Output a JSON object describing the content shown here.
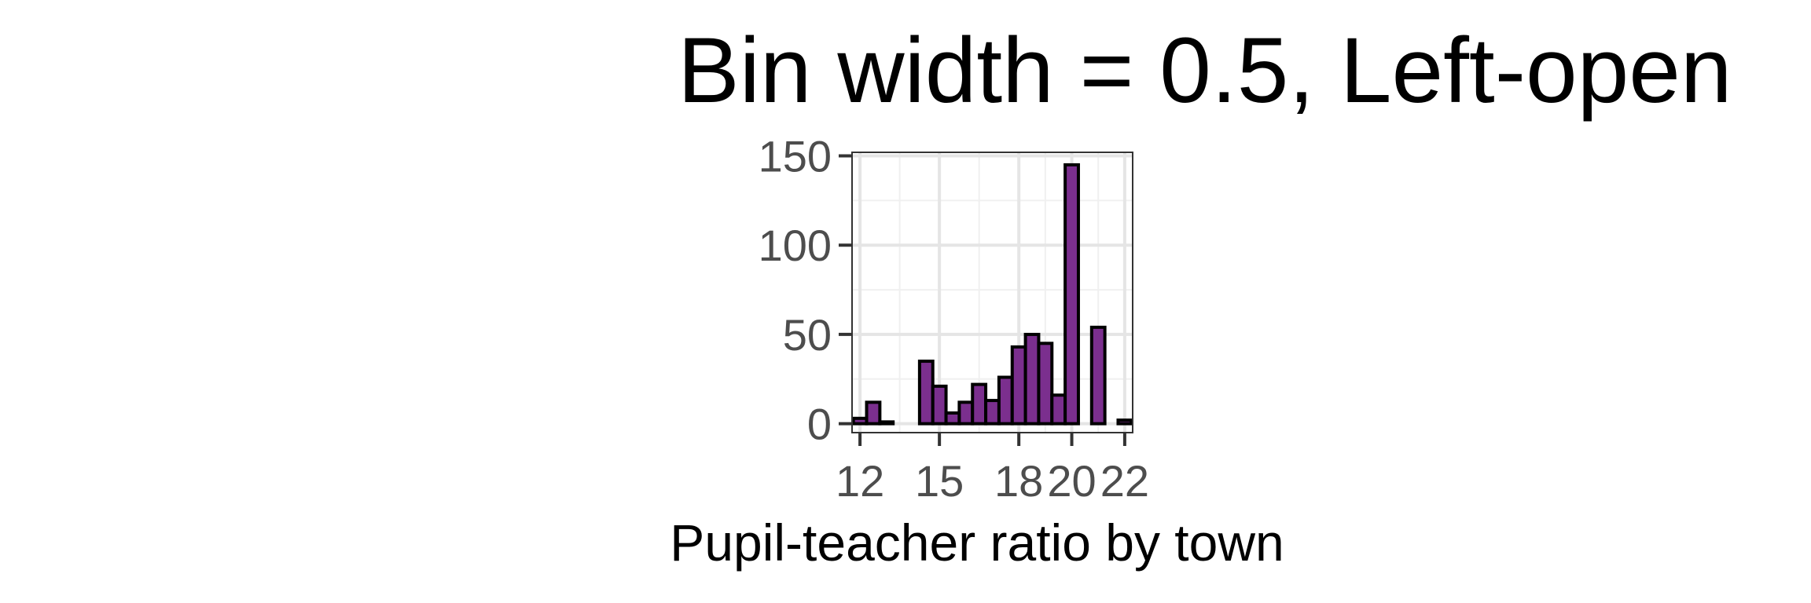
{
  "chart_data": {
    "type": "bar",
    "title": "Bin width = 0.5, Left-open",
    "xlabel": "Pupil-teacher ratio by town",
    "ylabel": "",
    "x_ticks": [
      "12",
      "15",
      "18",
      "20",
      "22"
    ],
    "x_tick_values": [
      12,
      15,
      18,
      20,
      22
    ],
    "y_ticks": [
      "0",
      "50",
      "100",
      "150"
    ],
    "y_tick_values": [
      0,
      50,
      100,
      150
    ],
    "xlim": [
      11.7,
      22.3
    ],
    "ylim": [
      -5,
      152
    ],
    "grid": true,
    "bin_width": 0.5,
    "bins": [
      {
        "x": 12.0,
        "count": 3
      },
      {
        "x": 12.5,
        "count": 12
      },
      {
        "x": 13.0,
        "count": 1
      },
      {
        "x": 13.5,
        "count": 0
      },
      {
        "x": 14.0,
        "count": 0
      },
      {
        "x": 14.5,
        "count": 35
      },
      {
        "x": 15.0,
        "count": 21
      },
      {
        "x": 15.5,
        "count": 6
      },
      {
        "x": 16.0,
        "count": 12
      },
      {
        "x": 16.5,
        "count": 22
      },
      {
        "x": 17.0,
        "count": 13
      },
      {
        "x": 17.5,
        "count": 26
      },
      {
        "x": 18.0,
        "count": 43
      },
      {
        "x": 18.5,
        "count": 50
      },
      {
        "x": 19.0,
        "count": 45
      },
      {
        "x": 19.5,
        "count": 16
      },
      {
        "x": 20.0,
        "count": 145
      },
      {
        "x": 20.5,
        "count": 0
      },
      {
        "x": 21.0,
        "count": 54
      },
      {
        "x": 21.5,
        "count": 0
      },
      {
        "x": 22.0,
        "count": 2
      }
    ],
    "colors": {
      "bar_fill": "#7B2F8E",
      "bar_stroke": "#000000",
      "grid_major": "#e5e5e5",
      "grid_minor": "#f0f0f0",
      "panel_border": "#333333",
      "tick_label": "#4d4d4d"
    }
  }
}
